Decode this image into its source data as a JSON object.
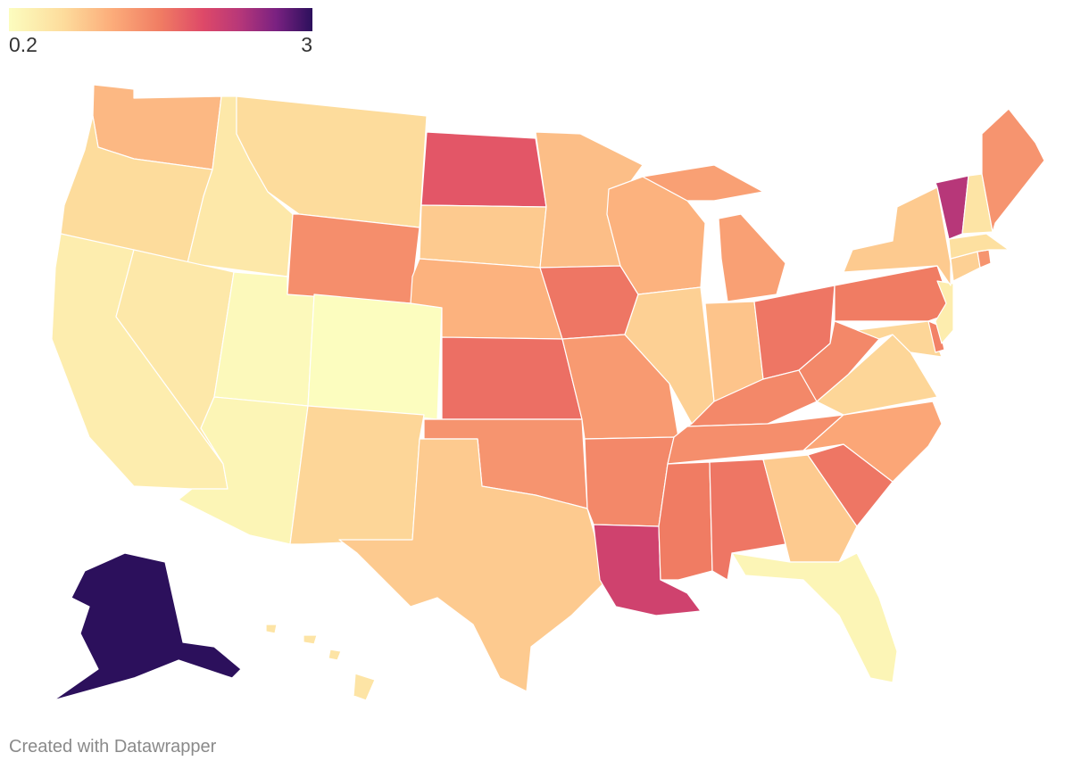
{
  "legend": {
    "min_label": "0.2",
    "max_label": "3",
    "min": 0.2,
    "max": 3
  },
  "credit": "Created with Datawrapper",
  "scale_colors": [
    "#fcfdbf",
    "#fddc9c",
    "#fcac7a",
    "#f07c63",
    "#de4968",
    "#b73779",
    "#7a2181",
    "#2c105c"
  ],
  "states": {
    "WA": 0.9,
    "OR": 0.6,
    "CA": 0.4,
    "ID": 0.45,
    "NV": 0.45,
    "UT": 0.25,
    "AZ": 0.3,
    "MT": 0.6,
    "WY": 1.25,
    "CO": 0.2,
    "NM": 0.65,
    "ND": 1.7,
    "SD": 0.75,
    "NE": 0.95,
    "KS": 1.5,
    "OK": 1.2,
    "TX": 0.75,
    "MN": 0.85,
    "IA": 1.45,
    "MO": 1.15,
    "AR": 1.3,
    "LA": 1.95,
    "WI": 0.95,
    "IL": 0.7,
    "MI": 1.1,
    "IN": 0.8,
    "OH": 1.45,
    "KY": 1.3,
    "TN": 1.25,
    "MS": 1.4,
    "AL": 1.45,
    "GA": 0.75,
    "FL": 0.3,
    "SC": 1.45,
    "NC": 1.05,
    "VA": 0.65,
    "WV": 1.3,
    "PA": 1.4,
    "NY": 0.75,
    "VT": 2.2,
    "NH": 0.5,
    "ME": 1.2,
    "MA": 0.55,
    "CT": 0.7,
    "RI": 1.2,
    "NJ": 0.4,
    "DE": 1.35,
    "MD": 0.65,
    "AK": 3.0,
    "HI": 0.5
  }
}
